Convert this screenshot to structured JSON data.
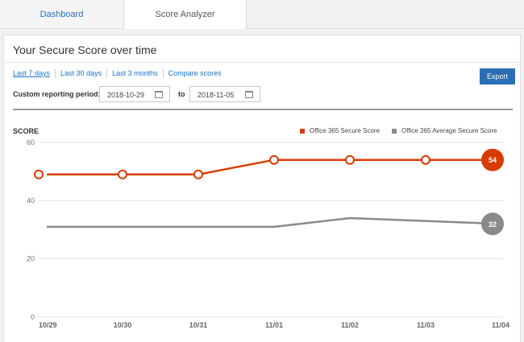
{
  "tabs": [
    {
      "label": "Dashboard",
      "active": false
    },
    {
      "label": "Score Analyzer",
      "active": true
    }
  ],
  "panel": {
    "title": "Your Secure Score over time",
    "filters": [
      {
        "label": "Last 7 days",
        "selected": true
      },
      {
        "label": "Last 30 days",
        "selected": false
      },
      {
        "label": "Last 3 months",
        "selected": false
      },
      {
        "label": "Compare scores",
        "selected": false
      }
    ],
    "export_label": "Export",
    "custom_period_label": "Custom reporting period:",
    "start_date": "2018-10-29",
    "to_label": "to",
    "end_date": "2018-11-05",
    "calendar_icon": "calendar-icon"
  },
  "colors": {
    "accent": "#1f72c4",
    "export_button": "#2a6eb5",
    "series_secure": "#d83b01",
    "series_average": "#8a8a8a"
  },
  "chart_data": {
    "type": "line",
    "ylabel": "SCORE",
    "ylim": [
      0,
      60
    ],
    "yticks": [
      0,
      20,
      40,
      60
    ],
    "categories": [
      "10/29",
      "10/30",
      "10/31",
      "11/01",
      "11/02",
      "11/03",
      "11/04"
    ],
    "legend_position": "top-right",
    "grid": true,
    "series": [
      {
        "name": "Office 365 Secure Score",
        "color": "#d83b01",
        "values": [
          49,
          49,
          49,
          54,
          54,
          54,
          54
        ],
        "end_label": "54",
        "markers": true
      },
      {
        "name": "Office 365 Average Secure Score",
        "color": "#8a8a8a",
        "values": [
          31,
          31,
          31,
          31,
          34,
          33,
          32
        ],
        "end_label": "32",
        "markers": false
      }
    ]
  }
}
